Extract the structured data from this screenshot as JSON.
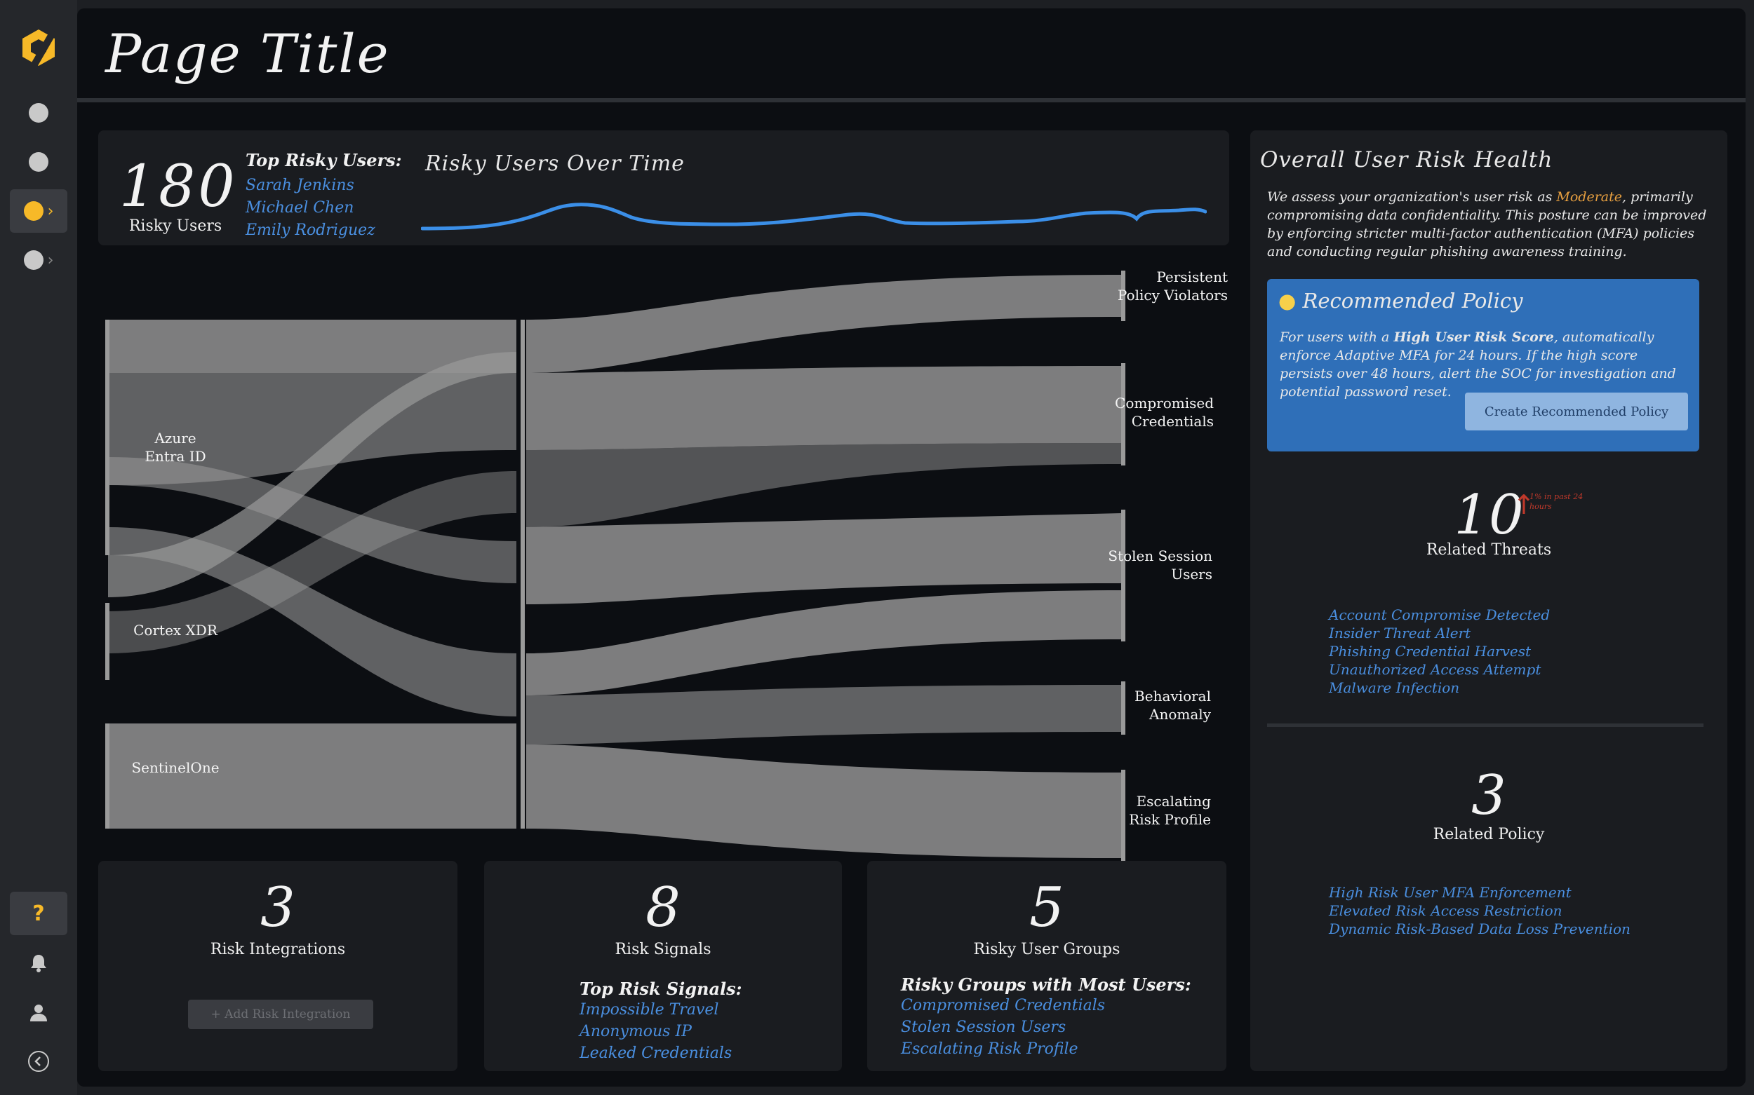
{
  "title": "Page Title",
  "top_card": {
    "count": "180",
    "count_label": "Risky Users",
    "top_heading": "Top Risky Users:",
    "top_users": [
      "Sarah Jenkins",
      "Michael Chen",
      "Emily Rodriguez"
    ],
    "trend_title": "Risky Users Over Time"
  },
  "sankey": {
    "sources": [
      "Azure\nEntra ID",
      "Cortex XDR",
      "SentinelOne"
    ],
    "targets": [
      "Persistent\nPolicy Violators",
      "Compromised\nCredentials",
      "Stolen Session\nUsers",
      "Behavioral\nAnomaly",
      "Escalating\nRisk Profile"
    ]
  },
  "bottom_cards": [
    {
      "count": "3",
      "label": "Risk Integrations",
      "button": "+ Add Risk Integration"
    },
    {
      "count": "8",
      "label": "Risk Signals",
      "heading": "Top Risk Signals:",
      "items": [
        "Impossible Travel",
        "Anonymous IP",
        "Leaked Credentials"
      ]
    },
    {
      "count": "5",
      "label": "Risky User Groups",
      "heading": "Risky Groups with Most Users:",
      "items": [
        "Compromised Credentials",
        "Stolen Session Users",
        "Escalating Risk Profile"
      ]
    }
  ],
  "health": {
    "title": "Overall User Risk Health",
    "desc_before": "We assess your organization's user risk as ",
    "level": "Moderate",
    "desc_after": ", primarily compromising data confidentiality. This posture can be improved by enforcing stricter multi-factor authentication (MFA) policies and conducting regular phishing awareness training.",
    "level_color": "#e8a040",
    "rec_title": "Recommended Policy",
    "rec_before": "For users with a ",
    "rec_bold": "High User Risk Score",
    "rec_after": ", automatically enforce Adaptive MFA for 24 hours. If the high score persists over 48 hours, alert the SOC for investigation and potential password reset.",
    "rec_button": "Create Recommended Policy",
    "threats_count": "10",
    "threats_delta": "1% in past 24 hours",
    "threats_label": "Related Threats",
    "threats": [
      "Account Compromise Detected",
      "Insider Threat Alert",
      "Phishing Credential Harvest",
      "Unauthorized Access Attempt",
      "Malware Infection"
    ],
    "policy_count": "3",
    "policy_label": "Related Policy",
    "policies": [
      "High Risk User MFA Enforcement",
      "Elevated Risk Access Restriction",
      "Dynamic Risk-Based Data Loss Prevention"
    ]
  },
  "colors": {
    "accent": "#f7b928",
    "link": "#4a8fe0",
    "rec_bg": "#2f6fb8",
    "trend": "#3b8fe8"
  }
}
